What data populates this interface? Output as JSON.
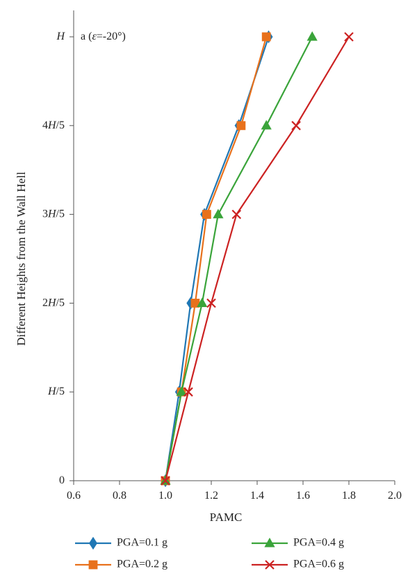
{
  "chart_data": {
    "type": "line",
    "annotation": {
      "prefix": "a (",
      "symbol": "ε",
      "suffix": "=-20°)"
    },
    "xlabel": "PAMC",
    "ylabel": "Different Heights from the Wall Hell",
    "xlim": [
      0.6,
      2.0
    ],
    "x_ticks": [
      "0.6",
      "0.8",
      "1.0",
      "1.2",
      "1.4",
      "1.6",
      "1.8",
      "2.0"
    ],
    "y_categories": [
      "0",
      "H/5",
      "2H/5",
      "3H/5",
      "4H/5",
      "H"
    ],
    "grid": false,
    "legend_position": "bottom",
    "series": [
      {
        "name": "PGA=0.1 g",
        "color": "#1f77b4",
        "marker": "diamond",
        "x": [
          1.0,
          1.06,
          1.11,
          1.17,
          1.32,
          1.45
        ]
      },
      {
        "name": "PGA=0.2 g",
        "color": "#e8711c",
        "marker": "square",
        "x": [
          1.0,
          1.07,
          1.13,
          1.18,
          1.33,
          1.44
        ]
      },
      {
        "name": "PGA=0.4 g",
        "color": "#3aa43a",
        "marker": "triangle",
        "x": [
          1.0,
          1.07,
          1.16,
          1.23,
          1.44,
          1.64
        ]
      },
      {
        "name": "PGA=0.6 g",
        "color": "#cc2222",
        "marker": "x",
        "x": [
          1.0,
          1.1,
          1.2,
          1.31,
          1.57,
          1.8
        ]
      }
    ]
  }
}
